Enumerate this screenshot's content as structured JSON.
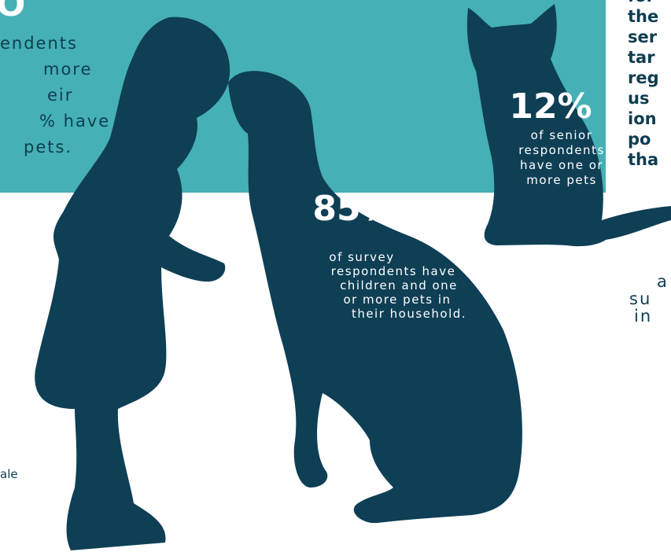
{
  "left_panel": {
    "big_number": "O",
    "lines": [
      "endents",
      "more",
      "eir",
      "% have",
      "pets."
    ],
    "bottom_text": "ale"
  },
  "cat_stat": {
    "number": "12%",
    "lines": [
      "of senior",
      "respondents",
      "have one or",
      "more pets"
    ]
  },
  "dog_stat": {
    "number": "85%",
    "lines": [
      "of survey",
      "respondents have",
      "children and one",
      "or more pets in",
      "their household."
    ]
  },
  "right_panel": {
    "lines": [
      "for",
      "the",
      "ser",
      "tar",
      "reg",
      "us",
      "ion",
      "po",
      "tha"
    ],
    "lower_lines": [
      "a",
      "su",
      "in"
    ]
  }
}
